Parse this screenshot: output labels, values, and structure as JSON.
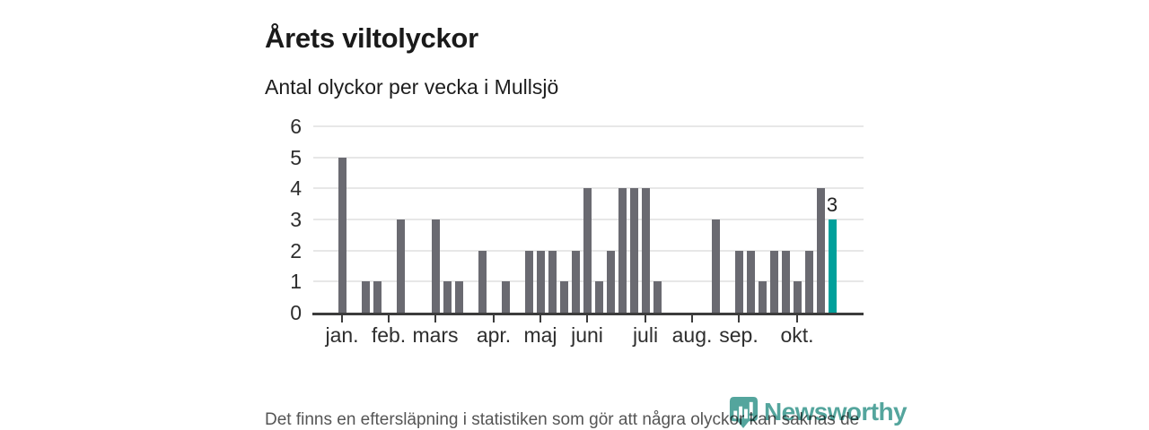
{
  "title": "Årets viltolyckor",
  "subtitle": "Antal olyckor per vecka i Mullsjö",
  "footer_note": "Det finns en eftersläpning i statistiken som gör att några olyckor kan saknas de senaste veckorna.",
  "logo": {
    "text": "Newsworthy",
    "icon": "newsworthy-pin-barchart-icon"
  },
  "colors": {
    "bar": "#6a6a71",
    "highlight": "#00a09b",
    "grid": "#e7e7e7",
    "axis": "#3c3c3c",
    "tick_label": "#2e2e2e",
    "value_label": "#222222",
    "footer_text": "#555555",
    "logo": "#3c998f"
  },
  "chart_data": {
    "type": "bar",
    "title": "Årets viltolyckor",
    "subtitle": "Antal olyckor per vecka i Mullsjö",
    "xlabel": "",
    "ylabel": "",
    "x_description": "veckor (weeks of the year, one bar per week)",
    "values": [
      5,
      0,
      1,
      1,
      0,
      3,
      0,
      0,
      3,
      1,
      1,
      0,
      2,
      0,
      1,
      0,
      2,
      2,
      2,
      1,
      2,
      4,
      1,
      2,
      4,
      4,
      4,
      1,
      0,
      0,
      0,
      0,
      3,
      0,
      2,
      2,
      1,
      2,
      2,
      1,
      2,
      4,
      3
    ],
    "highlight_index": 42,
    "highlight_value_label": "3",
    "ylim": [
      0,
      6
    ],
    "yticks": [
      0,
      1,
      2,
      3,
      4,
      5,
      6
    ],
    "grid": true,
    "month_ticks": [
      {
        "label": "jan.",
        "week_index": 0
      },
      {
        "label": "feb.",
        "week_index": 4
      },
      {
        "label": "mars",
        "week_index": 8
      },
      {
        "label": "apr.",
        "week_index": 13
      },
      {
        "label": "maj",
        "week_index": 17
      },
      {
        "label": "juni",
        "week_index": 21
      },
      {
        "label": "juli",
        "week_index": 26
      },
      {
        "label": "aug.",
        "week_index": 30
      },
      {
        "label": "sep.",
        "week_index": 34
      },
      {
        "label": "okt.",
        "week_index": 39
      }
    ]
  }
}
